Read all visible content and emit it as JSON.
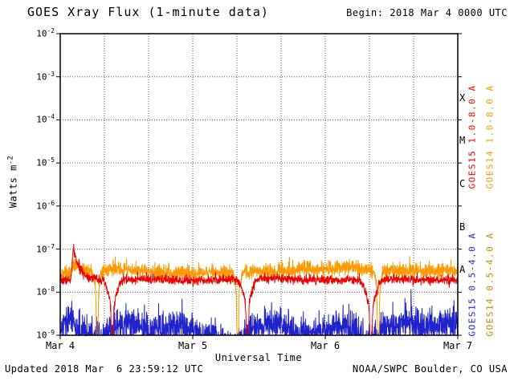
{
  "header": {
    "title": "GOES Xray Flux (1-minute data)",
    "begin": "Begin: 2018 Mar 4 0000 UTC"
  },
  "footer": {
    "updated": "Updated 2018 Mar  6 23:59:12 UTC",
    "credit": "NOAA/SWPC Boulder, CO USA"
  },
  "chart_data": {
    "type": "line",
    "title": "GOES Xray Flux (1-minute data)",
    "begin": "2018 Mar 4 0000 UTC",
    "updated": "2018 Mar 6 23:59:12 UTC",
    "credit": "NOAA/SWPC Boulder, CO USA",
    "xlabel": "Universal Time",
    "ylabel_base": "Watts m",
    "ylabel_exp": "-2",
    "x_range_days": 3,
    "x_tick_labels": [
      "Mar 4",
      "Mar 5",
      "Mar 6",
      "Mar 7"
    ],
    "y_log_range": [
      -9,
      -2
    ],
    "y_tick_exponents": [
      -2,
      -3,
      -4,
      -5,
      -6,
      -7,
      -8,
      -9
    ],
    "grid": {
      "y_decades": [
        -3,
        -4,
        -5,
        -6,
        -7,
        -8
      ],
      "x_hours_step": 8
    },
    "flare_classes": [
      {
        "label": "X",
        "center_log": -3.5
      },
      {
        "label": "M",
        "center_log": -4.5
      },
      {
        "label": "C",
        "center_log": -5.5
      },
      {
        "label": "B",
        "center_log": -6.5
      },
      {
        "label": "A",
        "center_log": -7.5
      }
    ],
    "series": [
      {
        "name": "GOES15 1.0-8.0 A",
        "color": "#ee0000",
        "seed": 7,
        "noise_dex": 0.055,
        "baseline_log": [
          [
            0,
            -7.72
          ],
          [
            0.5,
            -7.7
          ],
          [
            1.0,
            -7.72
          ],
          [
            1.5,
            -7.68
          ],
          [
            2.0,
            -7.72
          ],
          [
            2.5,
            -7.7
          ],
          [
            3.0,
            -7.72
          ]
        ],
        "flares": [
          {
            "t": 0.1,
            "peak_log": -7.0,
            "rise": 0.012,
            "decay": 0.05
          }
        ],
        "eclipse_dips": [
          {
            "t": 0.394,
            "shoulder_w": 0.045,
            "shoulder_depth": 0.55,
            "core_w": 0.008,
            "core_depth": 2.6
          },
          {
            "t": 1.412,
            "shoulder_w": 0.045,
            "shoulder_depth": 0.55,
            "core_w": 0.008,
            "core_depth": 2.6
          },
          {
            "t": 2.345,
            "shoulder_w": 0.045,
            "shoulder_depth": 0.65,
            "core_w": 0.008,
            "core_depth": 2.6
          }
        ]
      },
      {
        "name": "GOES14 1.0-8.0 A",
        "color": "#ff9900",
        "seed": 13,
        "noise_dex": 0.09,
        "baseline_log": [
          [
            0,
            -7.56
          ],
          [
            0.45,
            -7.46
          ],
          [
            0.7,
            -7.53
          ],
          [
            1.0,
            -7.56
          ],
          [
            1.5,
            -7.51
          ],
          [
            2.0,
            -7.46
          ],
          [
            2.15,
            -7.41
          ],
          [
            2.35,
            -7.5
          ],
          [
            3.0,
            -7.5
          ]
        ],
        "flares": [
          {
            "t": 0.1,
            "peak_log": -7.32,
            "rise": 0.012,
            "decay": 0.04
          }
        ],
        "eclipse_dips": [
          {
            "t": 0.279,
            "shoulder_w": 0.025,
            "shoulder_depth": 0.45,
            "core_w": 0.007,
            "core_depth": 2.4
          },
          {
            "t": 1.339,
            "shoulder_w": 0.025,
            "shoulder_depth": 0.45,
            "core_w": 0.007,
            "core_depth": 2.4
          },
          {
            "t": 2.4,
            "shoulder_w": 0.025,
            "shoulder_depth": 0.45,
            "core_w": 0.007,
            "core_depth": 2.4
          }
        ]
      },
      {
        "name": "GOES15 0.5-4.0 A",
        "color": "#2222cc",
        "seed": 29,
        "noise_dex": 0.2,
        "baseline_log": [
          [
            0,
            -8.9
          ],
          [
            0.08,
            -8.62
          ],
          [
            0.15,
            -8.92
          ],
          [
            0.3,
            -9.12
          ],
          [
            0.42,
            -8.8
          ],
          [
            0.55,
            -8.72
          ],
          [
            0.7,
            -8.95
          ],
          [
            0.85,
            -8.78
          ],
          [
            1.0,
            -8.9
          ],
          [
            1.15,
            -9.05
          ],
          [
            1.3,
            -9.3
          ],
          [
            1.45,
            -8.8
          ],
          [
            1.6,
            -8.72
          ],
          [
            1.75,
            -8.9
          ],
          [
            1.9,
            -9.0
          ],
          [
            2.05,
            -8.78
          ],
          [
            2.2,
            -8.82
          ],
          [
            2.32,
            -9.3
          ],
          [
            2.45,
            -8.85
          ],
          [
            2.6,
            -8.7
          ],
          [
            2.75,
            -8.82
          ],
          [
            2.9,
            -8.72
          ],
          [
            3.0,
            -8.78
          ]
        ],
        "flares": [],
        "eclipse_dips": []
      },
      {
        "name": "GOES14 0.5-4.0 A",
        "color": "#cc8800",
        "seed": 41,
        "noise_dex": 0.18,
        "baseline_log": [
          [
            0,
            -9.45
          ],
          [
            3.0,
            -9.45
          ]
        ],
        "flares": [],
        "eclipse_dips": []
      }
    ]
  }
}
